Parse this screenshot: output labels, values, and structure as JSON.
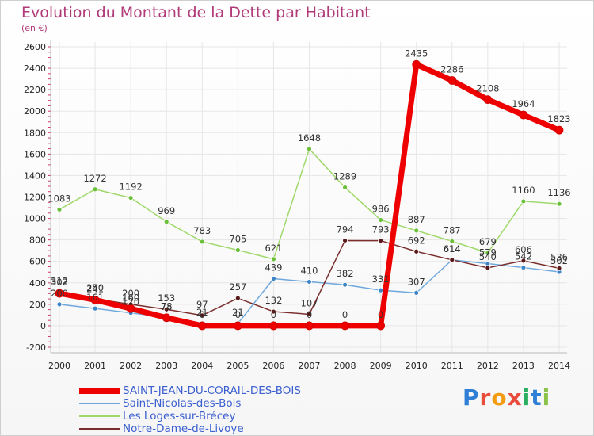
{
  "header": {
    "title": "Evolution du Montant de la Dette par Habitant",
    "subtitle": "(en €)"
  },
  "logo": {
    "text": "Proxiti",
    "letter_colors": [
      "#2f7fd6",
      "#e74c3c",
      "#f39c12",
      "#e74c3c",
      "#27ae60",
      "#2f7fd6",
      "#8bc34a"
    ]
  },
  "chart_data": {
    "type": "line",
    "x": [
      "2000",
      "2001",
      "2002",
      "2003",
      "2004",
      "2005",
      "2006",
      "2007",
      "2008",
      "2009",
      "2010",
      "2011",
      "2012",
      "2013",
      "2014"
    ],
    "ylim": [
      -200,
      2600
    ],
    "yticks": [
      "-200",
      "0",
      "200",
      "400",
      "600",
      "800",
      "1000",
      "1200",
      "1400",
      "1600",
      "1800",
      "2000",
      "2200",
      "2400",
      "2600"
    ],
    "grid": true,
    "legend_position": "bottom-left",
    "series": [
      {
        "name": "SAINT-JEAN-DU-CORAIL-DES-BOIS",
        "color": "#ee0000",
        "point_color": "#ee0000",
        "width": 7,
        "values": [
          302,
          241,
          160,
          75,
          0,
          0,
          0,
          0,
          0,
          0,
          2435,
          2286,
          2108,
          1964,
          1823
        ],
        "labels": [
          "302",
          "241",
          "160",
          "75",
          "0",
          "0",
          "0",
          "0",
          "0",
          "0",
          "2435",
          "2286",
          "2108",
          "1964",
          "1823"
        ]
      },
      {
        "name": "Saint-Nicolas-des-Bois",
        "color": "#6fa8dc",
        "point_color": "#3d85c6",
        "width": 1.5,
        "values": [
          200,
          161,
          120,
          78,
          21,
          21,
          439,
          410,
          382,
          331,
          307,
          614,
          579,
          542,
          502
        ],
        "labels": [
          "200",
          "161",
          "120",
          "78",
          "21",
          "21",
          "439",
          "410",
          "382",
          "331",
          "307",
          "614",
          "579",
          "542",
          "502"
        ]
      },
      {
        "name": "Les Loges-sur-Brécey",
        "color": "#9fd86b",
        "point_color": "#6abf3a",
        "width": 1.5,
        "values": [
          1083,
          1272,
          1192,
          969,
          783,
          705,
          621,
          1648,
          1289,
          986,
          887,
          787,
          679,
          1160,
          1136
        ],
        "labels": [
          "1083",
          "1272",
          "1192",
          "969",
          "783",
          "705",
          "621",
          "1648",
          "1289",
          "986",
          "887",
          "787",
          "679",
          "1160",
          "1136"
        ]
      },
      {
        "name": "Notre-Dame-de-Livoye",
        "color": "#7a2e2e",
        "point_color": "#5a1a1a",
        "width": 1.5,
        "values": [
          312,
          250,
          200,
          153,
          97,
          257,
          132,
          107,
          794,
          793,
          692,
          614,
          540,
          606,
          536
        ],
        "labels": [
          "312",
          "250",
          "200",
          "153",
          "97",
          "257",
          "132",
          "107",
          "794",
          "793",
          "692",
          "614",
          "540",
          "606",
          "536"
        ]
      }
    ]
  }
}
